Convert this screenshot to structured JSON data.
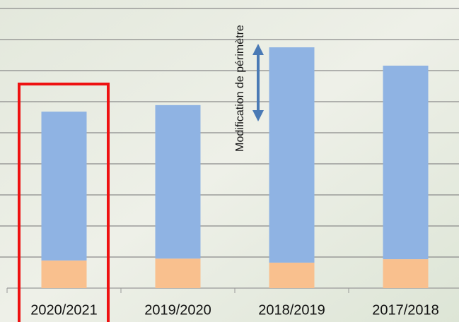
{
  "chart_data": {
    "type": "stacked_bar",
    "annotation": "Modification de périmètre",
    "categories": [
      "2020/2021",
      "2019/2020",
      "2018/2019",
      "2017/2018"
    ],
    "series": [
      {
        "color": "#f9c08e",
        "values": [
          0.89,
          0.95,
          0.82,
          0.93
        ]
      },
      {
        "color": "#8fb3e3",
        "values": [
          4.79,
          4.94,
          6.93,
          6.23
        ]
      }
    ],
    "ylim": [
      0,
      9
    ],
    "yticks": [
      0,
      1,
      2,
      3,
      4,
      5,
      6,
      7,
      8,
      9
    ],
    "grid": true
  }
}
